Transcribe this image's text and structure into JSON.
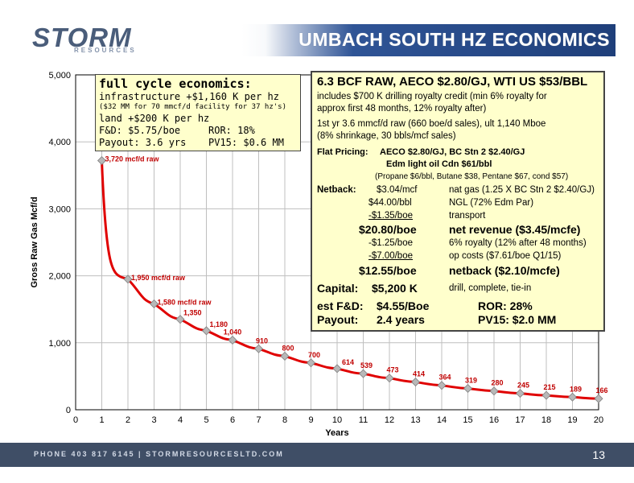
{
  "header": {
    "logo": "STORM",
    "logo_sub": "RESOURCES",
    "title": "UMBACH SOUTH HZ ECONOMICS"
  },
  "footer": {
    "contact": "PHONE 403 817 6145  |  STORMRESOURCESLTD.COM",
    "page": "13"
  },
  "colors": {
    "curve": "#e00000",
    "marker": "#b8b8b8",
    "box_fill": "#ffffcc",
    "header_blue": "#2f5496",
    "footer": "#3f4e66"
  },
  "box1": {
    "line1": "full cycle economics:",
    "line2": "infrastructure +$1,160 K per hz",
    "line3": "($32 MM for 70 mmcf/d facility for 37 hz's)",
    "line4": "land +$200 K per hz",
    "line5a": "F&D: $5.75/boe",
    "line5b": "ROR: 18%",
    "line6a": "Payout: 3.6 yrs",
    "line6b": "PV15: $0.6 MM"
  },
  "box2": {
    "heading": "6.3 BCF RAW, AECO $2.80/GJ, WTI US $53/BBL",
    "p1a": "includes $700 K drilling royalty credit (min 6% royalty for",
    "p1b": "approx first 48 months, 12% royalty after)",
    "p2a": "1st yr 3.6 mmcf/d raw (660 boe/d sales), ult  1,140 Mboe",
    "p2b": "(8% shrinkage, 30 bbls/mcf sales)",
    "flat_label": "Flat Pricing:",
    "flat1": "AECO $2.80/GJ, BC Stn 2 $2.40/GJ",
    "flat2": "Edm light oil Cdn $61/bbl",
    "flat3": "(Propane $6/bbl, Butane $38, Pentane $67, cond $57)",
    "netback_label": "Netback:",
    "nb1a": "$3.04/mcf",
    "nb1b": "nat gas (1.25 X BC Stn 2 $2.40/GJ)",
    "nb2a": "$44.00/bbl",
    "nb2b": "NGL (72% Edm Par)",
    "nb3a": "-$1.35/boe",
    "nb3b": "transport",
    "nb4a": "$20.80/boe",
    "nb4b": "net revenue ($3.45/mcfe)",
    "nb5a": "-$1.25/boe",
    "nb5b": "6% royalty (12% after 48 months)",
    "nb6a": "-$7.00/boe",
    "nb6b": "op costs  ($7.61/boe Q1/15)",
    "nb7a": "$12.55/boe",
    "nb7b": "netback ($2.10/mcfe)",
    "capital_label": "Capital:",
    "capital_value": "$5,200 K",
    "capital_desc": "drill, complete, tie-in",
    "fd_label": "est F&D:",
    "fd_value": "$4.55/Boe",
    "ror": "ROR: 28%",
    "payout_label": "Payout:",
    "payout_value": "2.4 years",
    "pv15": "PV15: $2.0 MM"
  },
  "chart_data": {
    "type": "line",
    "xlabel": "Years",
    "ylabel": "Gross Raw Gas Mcf/d",
    "xlim": [
      0,
      20
    ],
    "ylim": [
      0,
      5000
    ],
    "x_ticks": [
      "0",
      "1",
      "2",
      "3",
      "4",
      "5",
      "6",
      "7",
      "8",
      "9",
      "10",
      "11",
      "12",
      "13",
      "14",
      "15",
      "16",
      "17",
      "18",
      "19",
      "20"
    ],
    "y_ticks": [
      "0",
      "1,000",
      "2,000",
      "3,000",
      "4,000",
      "5,000"
    ],
    "grid": true,
    "x": [
      1,
      2,
      3,
      4,
      5,
      6,
      7,
      8,
      9,
      10,
      11,
      12,
      13,
      14,
      15,
      16,
      17,
      18,
      19,
      20
    ],
    "values": [
      3720,
      1950,
      1580,
      1350,
      1180,
      1040,
      910,
      800,
      700,
      614,
      539,
      473,
      414,
      364,
      319,
      280,
      245,
      215,
      189,
      166
    ],
    "labels": [
      "3,720  mcf/d raw",
      "1,950 mcf/d raw",
      "1,580 mcf/d raw",
      "1,350",
      "1,180",
      "1,040",
      "910",
      "800",
      "700",
      "614",
      "539",
      "473",
      "414",
      "364",
      "319",
      "280",
      "245",
      "215",
      "189",
      "166"
    ]
  }
}
